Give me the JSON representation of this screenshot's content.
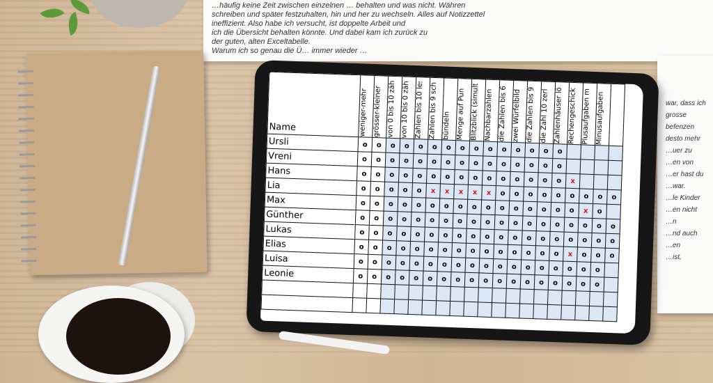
{
  "paper": {
    "lines": [
      "…häufig keine Zeit zwischen einzelnen … behalten und was nicht. Währen",
      "schreiben und später festzuhalten, hin und her zu wechseln. Alles auf Notizzettel",
      "ineffizient. Also habe ich versucht, ist doppelte Arbeit und",
      "ich die Übersicht behalten könnte. Und dabei kam ich zurück zu",
      "der guten, alten Exceltabelle."
    ],
    "paragraph2": "Warum ich so genau die Ü… immer wieder …",
    "fragments": [
      "war, dass ich",
      "grosse",
      "befenzen",
      "desto mehr",
      "…uer zu",
      "…en von",
      "…er hast du",
      "…war.",
      "…le Kinder",
      "…en nicht",
      "…n",
      "…nd auch",
      "…en",
      "…ist,"
    ]
  },
  "table": {
    "name_header": "Name",
    "columns": [
      "weniger-mehr",
      "grösser-kleiner",
      "von 0 bis 10 zäh",
      "von 10 bis 0 zäh",
      "Zahlen bis 10 les",
      "Zahlen bis 9 sch",
      "bündeln",
      "Menge auf Pun",
      "Blitzblick (simulta",
      "Nachbarzahlen",
      "die Zahlen bis 6",
      "zwei Würfelbild",
      "die Zahlen bis 9",
      "die Zahl 10 zerl",
      "Zahlenhäuser lö",
      "Rechengeschick",
      "Plusaufgaben m",
      "Minusaufgaben",
      ""
    ],
    "rows": [
      {
        "name": "Ursli",
        "marks": "ooooooooooooooo"
      },
      {
        "name": "Vreni",
        "marks": "ooooooooooooooo"
      },
      {
        "name": "Hans",
        "marks": "ooooooooooooooox"
      },
      {
        "name": "Lia",
        "marks": "oooooxxxxxoooooooooo"
      },
      {
        "name": "Max",
        "marks": "ooooooooooooooooxo"
      },
      {
        "name": "Günther",
        "marks": "ooooooooooooooooooo"
      },
      {
        "name": "Lukas",
        "marks": "ooooooooooooooooooo"
      },
      {
        "name": "Elias",
        "marks": "oooooooooooooooxooo"
      },
      {
        "name": "Luisa",
        "marks": "oooooooooooooooooo"
      },
      {
        "name": "Leonie",
        "marks": "oooooooooooooooooo"
      },
      {
        "name": "",
        "marks": ""
      },
      {
        "name": "",
        "marks": ""
      }
    ],
    "x_color": "#d01818",
    "shade_color": "#dbe7f5"
  }
}
